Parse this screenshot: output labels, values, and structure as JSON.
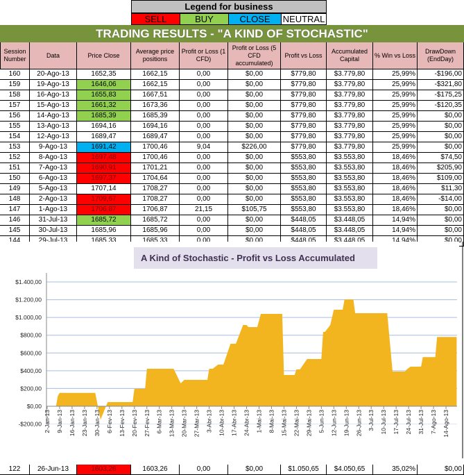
{
  "legend": {
    "title": "Legend for business",
    "items": [
      {
        "label": "SELL",
        "color": "#ff0000"
      },
      {
        "label": "BUY",
        "color": "#92d050"
      },
      {
        "label": "CLOSE",
        "color": "#00b0f0"
      },
      {
        "label": "NEUTRAL",
        "color": "#ffffff"
      }
    ]
  },
  "title": "TRADING RESULTS - \"A KIND OF STOCHASTIC\"",
  "columns": [
    "Session Number",
    "Data",
    "Price Close",
    "Average price positions",
    "Profit or Loss (1 CFD)",
    "Profit or Loss (5 CFD accumulated)",
    "Profit vs Loss",
    "Accumulated Capital",
    "% Win vs Loss",
    "DrawDown (EndDay)"
  ],
  "rows": [
    {
      "cells": [
        "160",
        "20-Ago-13",
        "1652,35",
        "1662,15",
        "0,00",
        "$0,00",
        "$779,80",
        "$3.779,80",
        "25,99%",
        "-$196,00"
      ],
      "signal": ""
    },
    {
      "cells": [
        "159",
        "19-Ago-13",
        "1646,06",
        "1662,15",
        "0,00",
        "$0,00",
        "$779,80",
        "$3.779,80",
        "25,99%",
        "-$321,80"
      ],
      "signal": "buy"
    },
    {
      "cells": [
        "158",
        "16-Ago-13",
        "1655,83",
        "1667,51",
        "0,00",
        "$0,00",
        "$779,80",
        "$3.779,80",
        "25,99%",
        "-$175,25"
      ],
      "signal": "buy"
    },
    {
      "cells": [
        "157",
        "15-Ago-13",
        "1661,32",
        "1673,36",
        "0,00",
        "$0,00",
        "$779,80",
        "$3.779,80",
        "25,99%",
        "-$120,35"
      ],
      "signal": "buy"
    },
    {
      "cells": [
        "156",
        "14-Ago-13",
        "1685,39",
        "1685,39",
        "0,00",
        "$0,00",
        "$779,80",
        "$3.779,80",
        "25,99%",
        "$0,00"
      ],
      "signal": "buy"
    },
    {
      "cells": [
        "155",
        "13-Ago-13",
        "1694,16",
        "1694,16",
        "0,00",
        "$0,00",
        "$779,80",
        "$3.779,80",
        "25,99%",
        "$0,00"
      ],
      "signal": ""
    },
    {
      "cells": [
        "154",
        "12-Ago-13",
        "1689,47",
        "1689,47",
        "0,00",
        "$0,00",
        "$779,80",
        "$3.779,80",
        "25,99%",
        "$0,00"
      ],
      "signal": ""
    },
    {
      "cells": [
        "153",
        "9-Ago-13",
        "1691,42",
        "1700,46",
        "9,04",
        "$226,00",
        "$779,80",
        "$3.779,80",
        "25,99%",
        "$0,00"
      ],
      "signal": "close"
    },
    {
      "cells": [
        "152",
        "8-Ago-13",
        "1697,48",
        "1700,46",
        "0,00",
        "$0,00",
        "$553,80",
        "$3.553,80",
        "18,46%",
        "$74,50"
      ],
      "signal": "sell"
    },
    {
      "cells": [
        "151",
        "7-Ago-13",
        "1690,91",
        "1701,21",
        "0,00",
        "$0,00",
        "$553,80",
        "$3.553,80",
        "18,46%",
        "$205,90"
      ],
      "signal": "sell"
    },
    {
      "cells": [
        "150",
        "6-Ago-13",
        "1697,37",
        "1704,64",
        "0,00",
        "$0,00",
        "$553,80",
        "$3.553,80",
        "18,46%",
        "$109,00"
      ],
      "signal": "sell"
    },
    {
      "cells": [
        "149",
        "5-Ago-13",
        "1707,14",
        "1708,27",
        "0,00",
        "$0,00",
        "$553,80",
        "$3.553,80",
        "18,46%",
        "$11,30"
      ],
      "signal": ""
    },
    {
      "cells": [
        "148",
        "2-Ago-13",
        "1709,67",
        "1708,27",
        "0,00",
        "$0,00",
        "$553,80",
        "$3.553,80",
        "18,46%",
        "-$14,00"
      ],
      "signal": "sell"
    },
    {
      "cells": [
        "147",
        "1-Ago-13",
        "1706,87",
        "1706,87",
        "21,15",
        "$105,75",
        "$553,80",
        "$3.553,80",
        "18,46%",
        "$0,00"
      ],
      "signal": "sell"
    },
    {
      "cells": [
        "146",
        "31-Jul-13",
        "1685,72",
        "1685,72",
        "0,00",
        "$0,00",
        "$448,05",
        "$3.448,05",
        "14,94%",
        "$0,00"
      ],
      "signal": "buy"
    },
    {
      "cells": [
        "145",
        "30-Jul-13",
        "1685,96",
        "1685,96",
        "0,00",
        "$0,00",
        "$448,05",
        "$3.448,05",
        "14,94%",
        "$0,00"
      ],
      "signal": ""
    },
    {
      "cells": [
        "144",
        "29-Jul-13",
        "1685,33",
        "1685,33",
        "0,00",
        "$0,00",
        "$448,05",
        "$3.448,05",
        "14,94%",
        "$0,00"
      ],
      "signal": ""
    }
  ],
  "bottom_rows": [
    {
      "cells": [
        "122",
        "26-Jun-13",
        "1603,26",
        "1603,26",
        "0,00",
        "$0,00",
        "$1.050,65",
        "$4.050,65",
        "35,02%",
        "$0,00"
      ],
      "signal": "sell"
    }
  ],
  "chart_data": {
    "type": "area",
    "title": "A Kind of Stochastic - Profit vs Loss Accumulated",
    "color": "#f2b51f",
    "ylim": [
      -200,
      1400
    ],
    "yticks": [
      "-$200,00",
      "$0,00",
      "$200,00",
      "$400,00",
      "$600,00",
      "$800,00",
      "$1.000,00",
      "$1.200,00",
      "$1.400,00"
    ],
    "ytick_values": [
      -200,
      0,
      200,
      400,
      600,
      800,
      1000,
      1200,
      1400
    ],
    "xticks": [
      "2-Jan-13",
      "9-Jan-13",
      "16-Jan-13",
      "23-Jan-13",
      "30-Jan-13",
      "6-Fev-13",
      "13-Fev-13",
      "20-Fev-13",
      "27-Fev-13",
      "6-Mar-13",
      "13-Mar-13",
      "20-Mar-13",
      "27-Mar-13",
      "3-Abr-13",
      "10-Abr-13",
      "17-Abr-13",
      "24-Abr-13",
      "1-Mai-13",
      "8-Mai-13",
      "15-Mai-13",
      "22-Mai-13",
      "29-Mai-13",
      "5-Jun-13",
      "12-Jun-13",
      "19-Jun-13",
      "26-Jun-13",
      "3-Jul-13",
      "10-Jul-13",
      "17-Jul-13",
      "24-Jul-13",
      "31-Jul-13",
      "7-Ago-13",
      "14-Ago-13"
    ],
    "grid": true,
    "points": [
      [
        "2013-01-07",
        0
      ],
      [
        "2013-01-08",
        117
      ],
      [
        "2013-01-09",
        150
      ],
      [
        "2013-01-29",
        150
      ],
      [
        "2013-02-01",
        -150
      ],
      [
        "2013-02-05",
        47
      ],
      [
        "2013-02-19",
        47
      ],
      [
        "2013-02-20",
        198
      ],
      [
        "2013-02-26",
        198
      ],
      [
        "2013-02-27",
        422
      ],
      [
        "2013-03-14",
        422
      ],
      [
        "2013-03-18",
        258
      ],
      [
        "2013-03-20",
        297
      ],
      [
        "2013-04-02",
        297
      ],
      [
        "2013-04-03",
        422
      ],
      [
        "2013-04-05",
        422
      ],
      [
        "2013-04-08",
        469
      ],
      [
        "2013-04-11",
        469
      ],
      [
        "2013-04-15",
        704
      ],
      [
        "2013-04-18",
        704
      ],
      [
        "2013-04-22",
        915
      ],
      [
        "2013-04-24",
        915
      ],
      [
        "2013-04-25",
        892
      ],
      [
        "2013-04-30",
        892
      ],
      [
        "2013-05-02",
        1040
      ],
      [
        "2013-05-14",
        1040
      ],
      [
        "2013-05-15",
        352
      ],
      [
        "2013-05-21",
        352
      ],
      [
        "2013-05-22",
        415
      ],
      [
        "2013-05-24",
        415
      ],
      [
        "2013-05-28",
        532
      ],
      [
        "2013-06-05",
        532
      ],
      [
        "2013-06-06",
        837
      ],
      [
        "2013-06-07",
        837
      ],
      [
        "2013-06-10",
        915
      ],
      [
        "2013-06-12",
        1087
      ],
      [
        "2013-06-17",
        1087
      ],
      [
        "2013-06-18",
        1204
      ],
      [
        "2013-06-23",
        1204
      ],
      [
        "2013-06-24",
        1048
      ],
      [
        "2013-07-12",
        1048
      ],
      [
        "2013-07-15",
        391
      ],
      [
        "2013-07-22",
        391
      ],
      [
        "2013-07-23",
        415
      ],
      [
        "2013-07-25",
        446
      ],
      [
        "2013-07-30",
        446
      ],
      [
        "2013-07-31",
        448
      ],
      [
        "2013-08-01",
        554
      ],
      [
        "2013-08-08",
        554
      ],
      [
        "2013-08-09",
        780
      ],
      [
        "2013-08-20",
        780
      ]
    ]
  }
}
